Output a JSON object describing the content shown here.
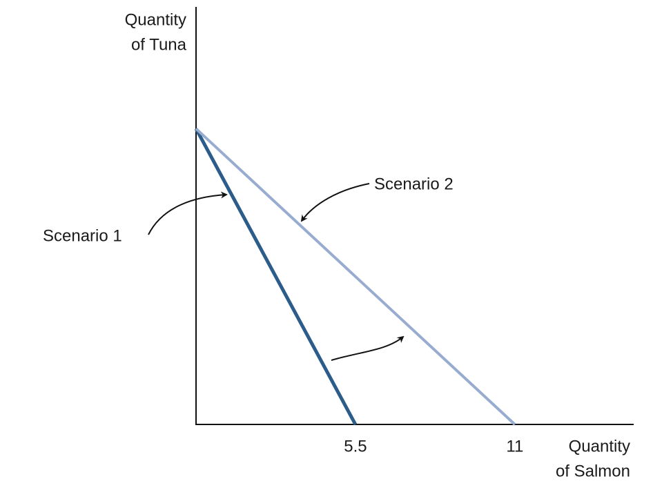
{
  "chart_data": {
    "type": "line",
    "x_label": [
      "Quantity",
      "of Salmon"
    ],
    "y_label": [
      "Quantity",
      "of Tuna"
    ],
    "xlim": [
      0,
      15.1
    ],
    "ylim": [
      0,
      14.4
    ],
    "xticks": [
      5.5,
      11
    ],
    "series": [
      {
        "name": "Scenario 1",
        "color": "#2c5d8a",
        "x": [
          0,
          5.5
        ],
        "values": [
          10.2,
          0
        ]
      },
      {
        "name": "Scenario 2",
        "color": "#98acd0",
        "x": [
          0,
          11
        ],
        "values": [
          10.2,
          0
        ]
      }
    ]
  }
}
